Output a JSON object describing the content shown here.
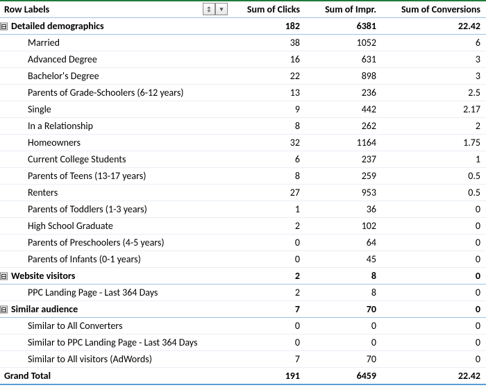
{
  "colors": {
    "header_border_green": "#1f7a3a",
    "row_divider_blue": "#9cc2e5",
    "light_divider": "#e9eef5",
    "grand_border": "#5b9bd5",
    "text": "#000000",
    "background": "#ffffff"
  },
  "headers": {
    "row_labels": "Row Labels",
    "clicks": "Sum of Clicks",
    "impr": "Sum of Impr.",
    "conversions": "Sum of Conversions"
  },
  "filter_icons": {
    "sort": "↕",
    "dropdown": "▾"
  },
  "collapse_glyph": "⊟",
  "groups": [
    {
      "label": "Detailed demographics",
      "clicks": "182",
      "impr": "6381",
      "conversions": "22.42",
      "rows": [
        {
          "label": "Married",
          "clicks": "38",
          "impr": "1052",
          "conversions": "6"
        },
        {
          "label": "Advanced Degree",
          "clicks": "16",
          "impr": "631",
          "conversions": "3"
        },
        {
          "label": "Bachelor's Degree",
          "clicks": "22",
          "impr": "898",
          "conversions": "3"
        },
        {
          "label": "Parents of Grade-Schoolers (6-12 years)",
          "clicks": "13",
          "impr": "236",
          "conversions": "2.5"
        },
        {
          "label": "Single",
          "clicks": "9",
          "impr": "442",
          "conversions": "2.17"
        },
        {
          "label": "In a Relationship",
          "clicks": "8",
          "impr": "262",
          "conversions": "2"
        },
        {
          "label": "Homeowners",
          "clicks": "32",
          "impr": "1164",
          "conversions": "1.75"
        },
        {
          "label": "Current College Students",
          "clicks": "6",
          "impr": "237",
          "conversions": "1"
        },
        {
          "label": "Parents of Teens (13-17 years)",
          "clicks": "8",
          "impr": "259",
          "conversions": "0.5"
        },
        {
          "label": "Renters",
          "clicks": "27",
          "impr": "953",
          "conversions": "0.5"
        },
        {
          "label": "Parents of Toddlers (1-3 years)",
          "clicks": "1",
          "impr": "36",
          "conversions": "0"
        },
        {
          "label": "High School Graduate",
          "clicks": "2",
          "impr": "102",
          "conversions": "0"
        },
        {
          "label": "Parents of Preschoolers (4-5 years)",
          "clicks": "0",
          "impr": "64",
          "conversions": "0"
        },
        {
          "label": "Parents of Infants (0-1 years)",
          "clicks": "0",
          "impr": "45",
          "conversions": "0"
        }
      ]
    },
    {
      "label": "Website visitors",
      "clicks": "2",
      "impr": "8",
      "conversions": "0",
      "rows": [
        {
          "label": "PPC Landing Page - Last 364 Days",
          "clicks": "2",
          "impr": "8",
          "conversions": "0"
        }
      ]
    },
    {
      "label": "Similar audience",
      "clicks": "7",
      "impr": "70",
      "conversions": "0",
      "rows": [
        {
          "label": "Similar to All Converters",
          "clicks": "0",
          "impr": "0",
          "conversions": "0"
        },
        {
          "label": "Similar to PPC Landing Page - Last 364 Days",
          "clicks": "0",
          "impr": "0",
          "conversions": "0"
        },
        {
          "label": "Similar to All visitors (AdWords)",
          "clicks": "7",
          "impr": "70",
          "conversions": "0"
        }
      ]
    }
  ],
  "grand_total": {
    "label": "Grand Total",
    "clicks": "191",
    "impr": "6459",
    "conversions": "22.42"
  }
}
